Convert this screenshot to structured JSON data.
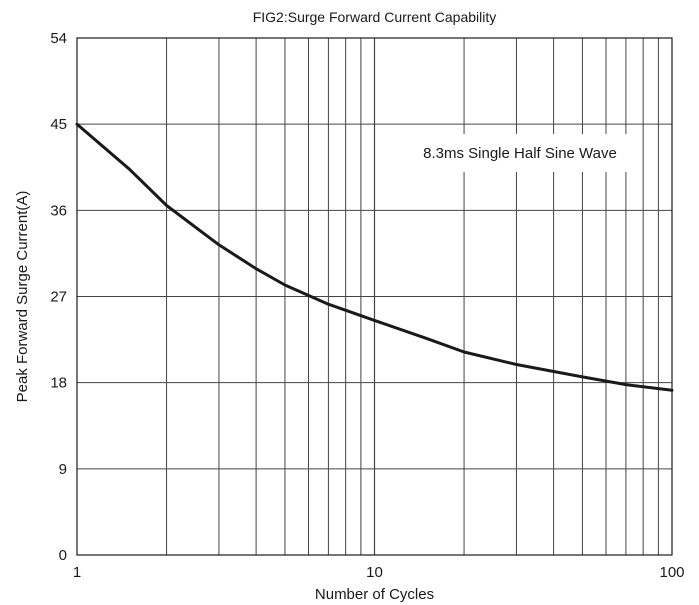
{
  "chart_data": {
    "type": "line",
    "title": "FIG2:Surge Forward Current Capability",
    "xlabel": "Number of Cycles",
    "ylabel": "Peak Forward Surge Current(A)",
    "x_scale": "log",
    "xlim": [
      1,
      100
    ],
    "ylim": [
      0,
      54
    ],
    "x_ticks": [
      1,
      10,
      100
    ],
    "x_tick_labels": [
      "1",
      "10",
      "100"
    ],
    "y_ticks": [
      0,
      9,
      18,
      27,
      36,
      45,
      54
    ],
    "y_tick_labels": [
      "0",
      "9",
      "18",
      "27",
      "36",
      "45",
      "54"
    ],
    "grid": true,
    "annotation": "8.3ms Single Half Sine Wave",
    "series": [
      {
        "x": [
          1,
          1.5,
          2,
          3,
          4,
          5,
          7,
          10,
          15,
          20,
          30,
          50,
          70,
          100
        ],
        "values": [
          45,
          40.3,
          36.5,
          32.4,
          29.9,
          28.2,
          26.2,
          24.5,
          22.6,
          21.2,
          19.9,
          18.6,
          17.8,
          17.2
        ]
      }
    ],
    "colors": {
      "line": "#1a1a1a",
      "grid": "#444444",
      "axis": "#1a1a1a"
    }
  }
}
